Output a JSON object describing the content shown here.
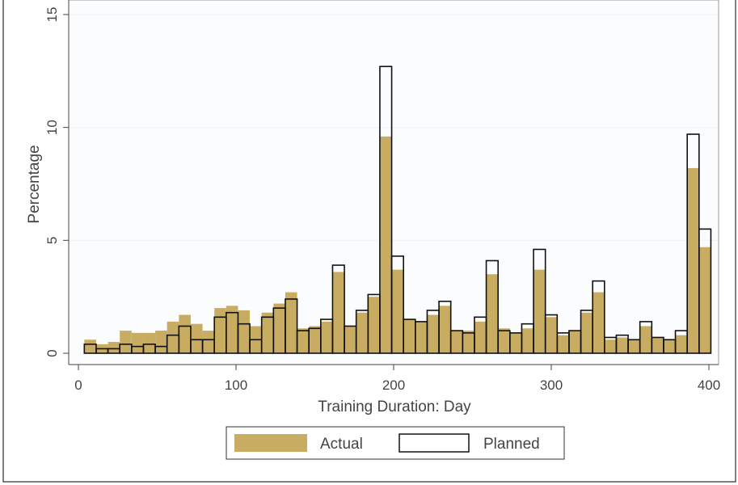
{
  "chart_data": {
    "type": "bar",
    "xlabel": "Training Duration: Day",
    "ylabel": "Percentage",
    "xlim": [
      0,
      400
    ],
    "ylim": [
      0,
      15
    ],
    "xticks": [
      0,
      100,
      200,
      300,
      400
    ],
    "yticks": [
      0,
      5,
      10,
      15
    ],
    "bin_width": 7.5,
    "legend_position": "bottom-center",
    "grid": true,
    "colors": {
      "actual": "#c8ac62",
      "planned_stroke": "#111111",
      "grid": "#eef3f7"
    },
    "x": [
      7.5,
      15,
      22.5,
      30,
      37.5,
      45,
      52.5,
      60,
      67.5,
      75,
      82.5,
      90,
      97.5,
      105,
      112.5,
      120,
      127.5,
      135,
      142.5,
      150,
      157.5,
      165,
      172.5,
      180,
      187.5,
      195,
      202.5,
      210,
      217.5,
      225,
      232.5,
      240,
      247.5,
      255,
      262.5,
      270,
      277.5,
      285,
      292.5,
      300,
      307.5,
      315,
      322.5,
      330,
      337.5,
      345,
      352.5,
      360,
      367.5,
      375,
      382.5,
      390,
      397.5
    ],
    "series": [
      {
        "name": "Actual",
        "values": [
          0.6,
          0.4,
          0.5,
          1.0,
          0.9,
          0.9,
          1.0,
          1.4,
          1.7,
          1.3,
          1.0,
          2.0,
          2.1,
          1.9,
          1.2,
          1.8,
          2.2,
          2.7,
          1.1,
          1.2,
          1.4,
          3.6,
          1.2,
          1.8,
          2.5,
          9.6,
          3.7,
          1.5,
          1.4,
          1.7,
          2.1,
          1.0,
          1.0,
          1.4,
          3.5,
          1.1,
          0.9,
          1.1,
          3.7,
          1.6,
          0.8,
          1.0,
          1.8,
          2.7,
          0.6,
          0.7,
          0.6,
          1.2,
          0.7,
          0.6,
          0.8,
          8.2,
          4.7
        ]
      },
      {
        "name": "Planned",
        "values": [
          0.4,
          0.2,
          0.2,
          0.4,
          0.3,
          0.4,
          0.3,
          0.8,
          1.2,
          0.6,
          0.6,
          1.6,
          1.8,
          1.3,
          0.6,
          1.6,
          2.0,
          2.4,
          1.0,
          1.1,
          1.5,
          3.9,
          1.2,
          1.9,
          2.6,
          12.7,
          4.3,
          1.5,
          1.4,
          1.9,
          2.3,
          1.0,
          0.9,
          1.6,
          4.1,
          1.0,
          0.9,
          1.3,
          4.6,
          1.7,
          0.9,
          1.0,
          1.9,
          3.2,
          0.7,
          0.8,
          0.6,
          1.4,
          0.7,
          0.6,
          1.0,
          9.7,
          5.5
        ]
      }
    ]
  }
}
